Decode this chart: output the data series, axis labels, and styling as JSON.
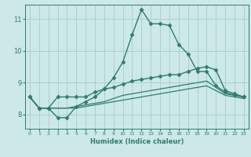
{
  "xlabel": "Humidex (Indice chaleur)",
  "background_color": "#cce8e8",
  "grid_color": "#aacccc",
  "line_color": "#2e7d6e",
  "xlim": [
    -0.5,
    23.5
  ],
  "ylim": [
    7.55,
    11.45
  ],
  "x_ticks": [
    0,
    1,
    2,
    3,
    4,
    5,
    6,
    7,
    8,
    9,
    10,
    11,
    12,
    13,
    14,
    15,
    16,
    17,
    18,
    19,
    20,
    21,
    22,
    23
  ],
  "y_ticks": [
    8,
    9,
    10,
    11
  ],
  "series": [
    {
      "x": [
        0,
        1,
        2,
        3,
        4,
        5,
        6,
        7,
        8,
        9,
        10,
        11,
        12,
        13,
        14,
        15,
        16,
        17,
        18,
        19,
        20,
        21,
        22,
        23
      ],
      "y": [
        8.55,
        8.2,
        8.2,
        7.9,
        7.9,
        8.25,
        8.4,
        8.55,
        8.8,
        9.15,
        9.65,
        10.5,
        11.3,
        10.85,
        10.85,
        10.8,
        10.2,
        9.9,
        9.35,
        9.35,
        8.9,
        8.7,
        8.6,
        8.55
      ],
      "marker": "D",
      "markersize": 2.5,
      "linewidth": 1.0
    },
    {
      "x": [
        0,
        1,
        2,
        3,
        4,
        5,
        6,
        7,
        8,
        9,
        10,
        11,
        12,
        13,
        14,
        15,
        16,
        17,
        18,
        19,
        20,
        21,
        22,
        23
      ],
      "y": [
        8.55,
        8.2,
        8.2,
        8.55,
        8.55,
        8.55,
        8.55,
        8.7,
        8.8,
        8.85,
        8.95,
        9.05,
        9.1,
        9.15,
        9.2,
        9.25,
        9.25,
        9.35,
        9.45,
        9.5,
        9.4,
        8.75,
        8.65,
        8.55
      ],
      "marker": "D",
      "markersize": 2.5,
      "linewidth": 1.0
    },
    {
      "x": [
        0,
        1,
        2,
        3,
        4,
        5,
        6,
        7,
        8,
        9,
        10,
        11,
        12,
        13,
        14,
        15,
        16,
        17,
        18,
        19,
        20,
        21,
        22,
        23
      ],
      "y": [
        8.55,
        8.2,
        8.2,
        8.2,
        8.2,
        8.25,
        8.3,
        8.35,
        8.4,
        8.5,
        8.6,
        8.65,
        8.7,
        8.75,
        8.8,
        8.85,
        8.9,
        8.95,
        9.0,
        9.05,
        8.85,
        8.65,
        8.6,
        8.55
      ],
      "marker": null,
      "markersize": 0,
      "linewidth": 0.9
    },
    {
      "x": [
        0,
        1,
        2,
        3,
        4,
        5,
        6,
        7,
        8,
        9,
        10,
        11,
        12,
        13,
        14,
        15,
        16,
        17,
        18,
        19,
        20,
        21,
        22,
        23
      ],
      "y": [
        8.55,
        8.2,
        8.2,
        8.2,
        8.2,
        8.2,
        8.25,
        8.3,
        8.35,
        8.4,
        8.45,
        8.5,
        8.55,
        8.6,
        8.65,
        8.7,
        8.75,
        8.8,
        8.85,
        8.9,
        8.75,
        8.6,
        8.55,
        8.5
      ],
      "marker": null,
      "markersize": 0,
      "linewidth": 0.9
    }
  ]
}
